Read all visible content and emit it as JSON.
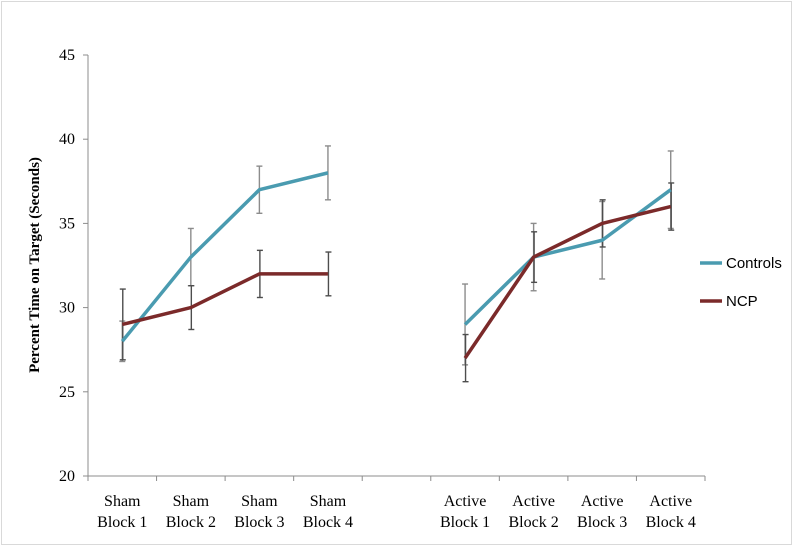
{
  "chart_data": {
    "type": "line",
    "ylabel": "Percent Time on Target (Seconds)",
    "xlabel": "",
    "ylim": [
      20,
      45
    ],
    "yticks": [
      20,
      25,
      30,
      35,
      40,
      45
    ],
    "grid": false,
    "legend_position": "right",
    "categories": [
      [
        "Sham",
        "Block 1"
      ],
      [
        "Sham",
        "Block 2"
      ],
      [
        "Sham",
        "Block 3"
      ],
      [
        "Sham",
        "Block 4"
      ],
      [
        "",
        ""
      ],
      [
        "Active",
        "Block 1"
      ],
      [
        "Active",
        "Block 2"
      ],
      [
        "Active",
        "Block 3"
      ],
      [
        "Active",
        "Block 4"
      ]
    ],
    "series": [
      {
        "name": "Controls",
        "color": "#4a9bb0",
        "values": [
          28,
          33,
          37,
          38,
          null,
          29,
          33,
          34,
          37
        ],
        "error": [
          1.2,
          1.7,
          1.4,
          1.6,
          null,
          2.4,
          2.0,
          2.3,
          2.3
        ]
      },
      {
        "name": "NCP",
        "color": "#7b2a2a",
        "values": [
          29,
          30,
          32,
          32,
          null,
          27,
          33,
          35,
          36
        ],
        "error": [
          2.1,
          1.3,
          1.4,
          1.3,
          null,
          1.4,
          1.5,
          1.4,
          1.4
        ]
      }
    ]
  }
}
